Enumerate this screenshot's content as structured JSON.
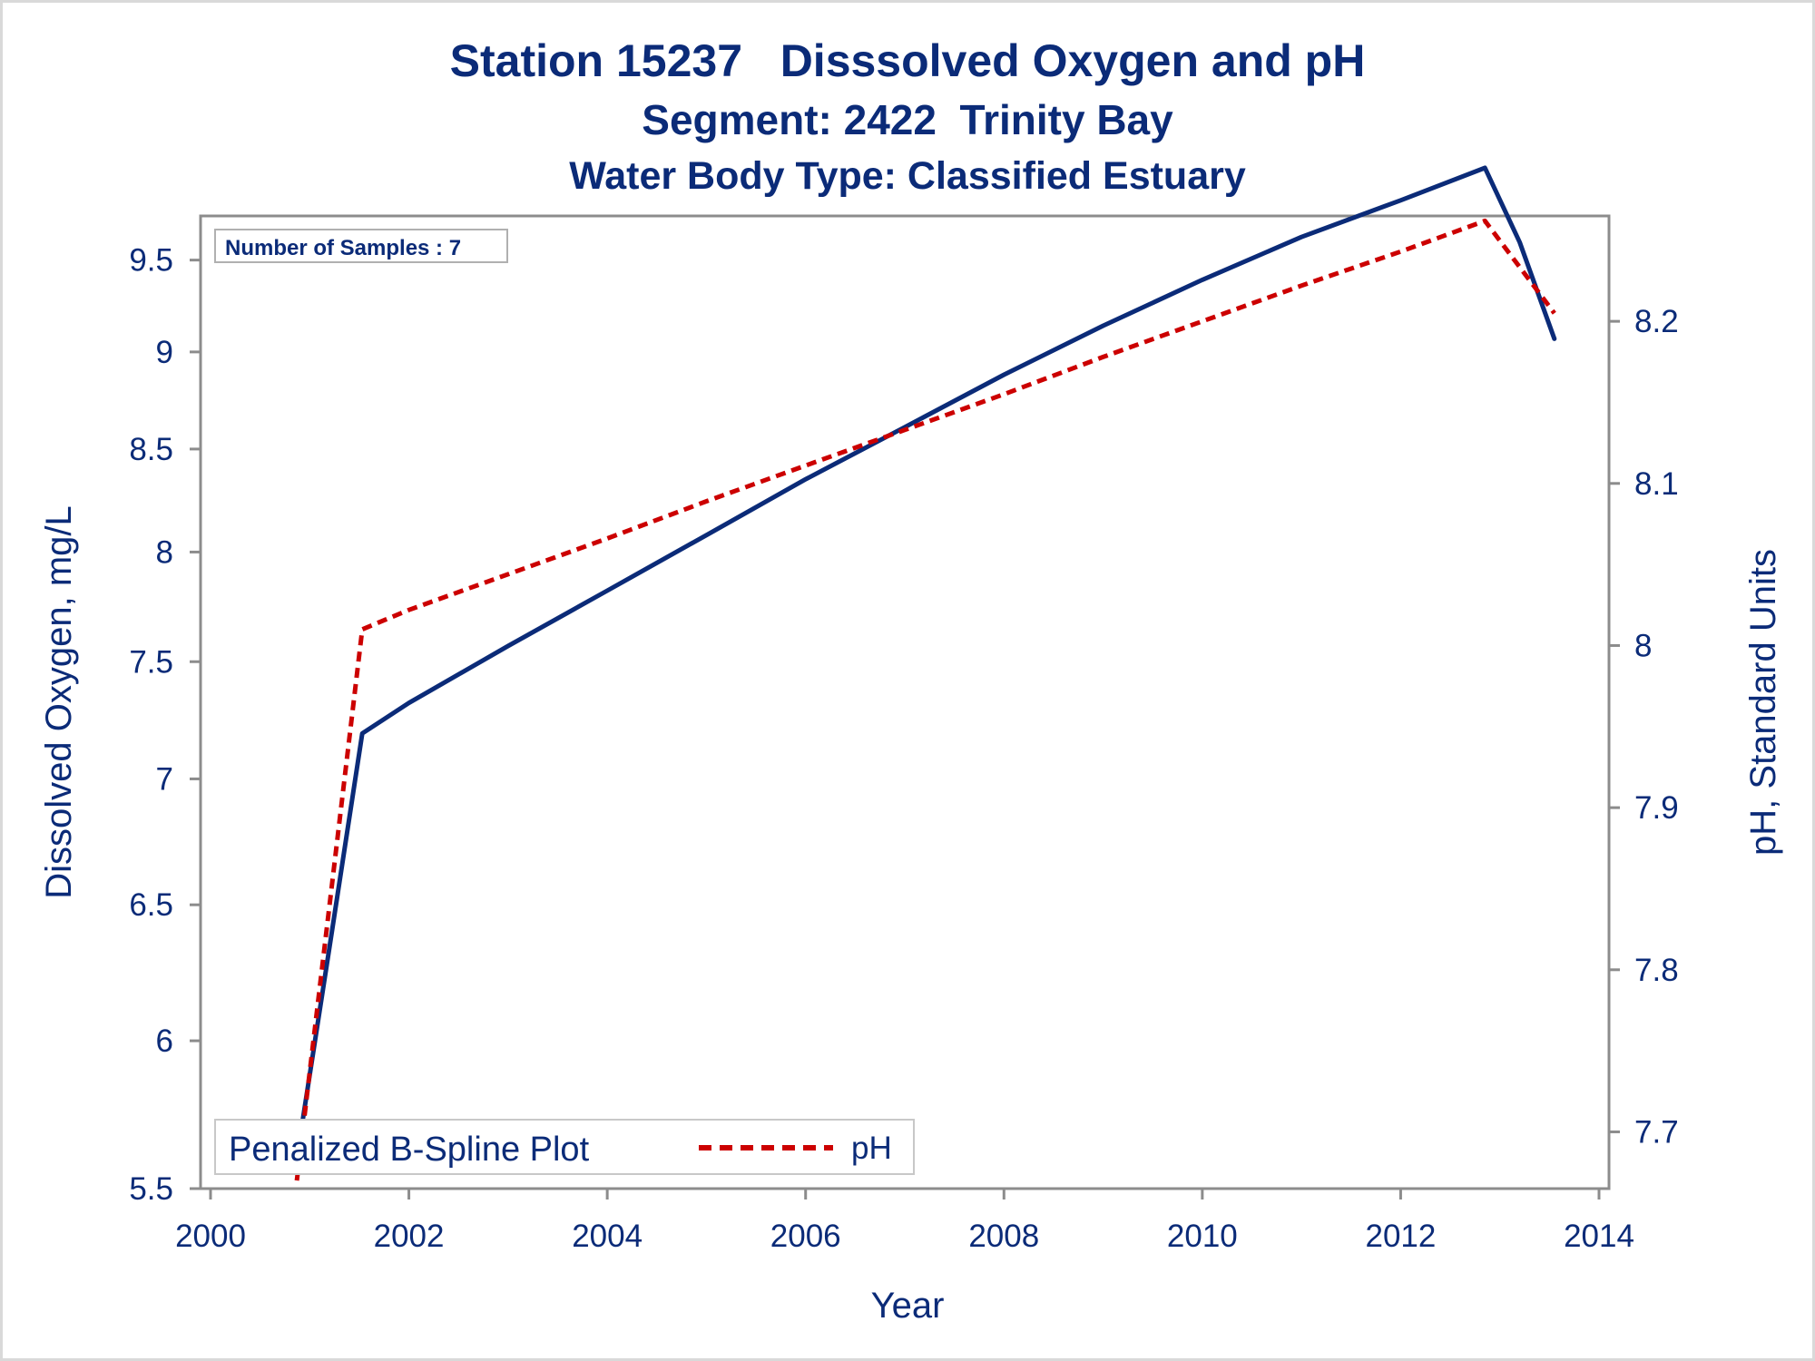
{
  "chart_data": {
    "type": "line",
    "title": "Station 15237   Disssolved Oxygen and pH",
    "subtitle": "Segment: 2422  Trinity Bay",
    "subtitle2": "Water Body Type: Classified Estuary",
    "xlabel": "Year",
    "ylabel": "Dissolved Oxygen, mg/L",
    "y2label": "pH, Standard Units",
    "xlim": [
      2000,
      2014
    ],
    "ylim": [
      5.5,
      9.75
    ],
    "yscale": "log",
    "y2lim": [
      7.665,
      8.265
    ],
    "x_ticks": [
      "2000",
      "2002",
      "2004",
      "2006",
      "2008",
      "2010",
      "2012",
      "2014"
    ],
    "y_ticks": [
      "5.5",
      "6",
      "6.5",
      "7",
      "7.5",
      "8",
      "8.5",
      "9",
      "9.5"
    ],
    "y2_ticks": [
      "7.7",
      "7.8",
      "7.9",
      "8",
      "8.1",
      "8.2"
    ],
    "inset": "Number of Samples : 7",
    "legend_title": "Penalized B-Spline Plot",
    "legend_position": "bottom-left",
    "grid": false,
    "series": [
      {
        "axis": "left",
        "color": "#0b2b78",
        "style": "solid",
        "x": [
          2000.87,
          2001.2,
          2001.53,
          2002.0,
          2003.0,
          2004.0,
          2005.0,
          2006.0,
          2007.0,
          2008.0,
          2009.0,
          2010.0,
          2011.0,
          2012.0,
          2012.85,
          2013.2,
          2013.55
        ],
        "y": [
          5.6,
          6.34,
          7.19,
          7.32,
          7.57,
          7.82,
          8.08,
          8.35,
          8.61,
          8.88,
          9.14,
          9.39,
          9.63,
          9.84,
          10.03,
          9.6,
          9.07
        ]
      },
      {
        "name": "pH",
        "axis": "right",
        "color": "#cc0000",
        "style": "dashed",
        "x": [
          2000.87,
          2001.53,
          2002.0,
          2003.0,
          2004.0,
          2005.0,
          2006.0,
          2007.0,
          2008.0,
          2009.0,
          2010.0,
          2011.0,
          2012.0,
          2012.85,
          2013.55
        ],
        "y": [
          7.67,
          8.01,
          8.022,
          8.044,
          8.066,
          8.089,
          8.111,
          8.133,
          8.155,
          8.178,
          8.2,
          8.222,
          8.243,
          8.262,
          8.205
        ]
      }
    ]
  }
}
